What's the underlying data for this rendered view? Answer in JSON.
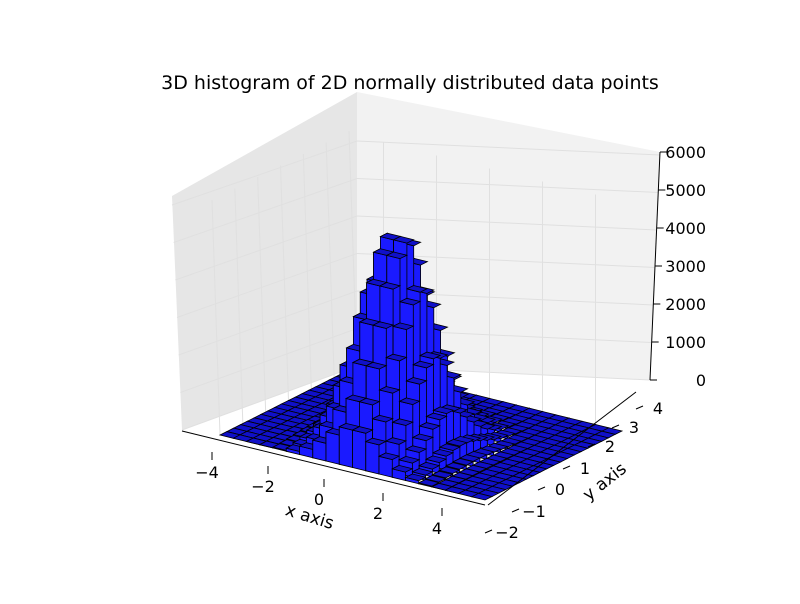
{
  "chart_data": {
    "type": "bar3d",
    "title": "3D histogram of 2D normally distributed data points",
    "xlabel": "x axis",
    "ylabel": "y axis",
    "zlabel": "",
    "x_ticks": [
      "−4",
      "−2",
      "0",
      "2",
      "4"
    ],
    "y_ticks": [
      "−2",
      "−1",
      "0",
      "1",
      "2",
      "3",
      "4"
    ],
    "z_ticks": [
      "0",
      "1000",
      "2000",
      "3000",
      "4000",
      "5000",
      "6000"
    ],
    "xlim": [
      -5,
      5
    ],
    "ylim": [
      -2,
      4
    ],
    "zlim": [
      0,
      6000
    ],
    "bins": 20,
    "bin_range": [
      [
        -5,
        5
      ],
      [
        -2,
        4
      ]
    ],
    "distribution": "2D normal",
    "grid": true,
    "bar_colors": {
      "face": "#0000ff",
      "side_light": "#1a1aff",
      "side_dark": "#000088",
      "top": "#1010c8",
      "edge": "#000000"
    },
    "pane_colors": {
      "back": "#f2f2f2",
      "side": "#e6e6e6",
      "grid": "#e0e0e0"
    }
  }
}
